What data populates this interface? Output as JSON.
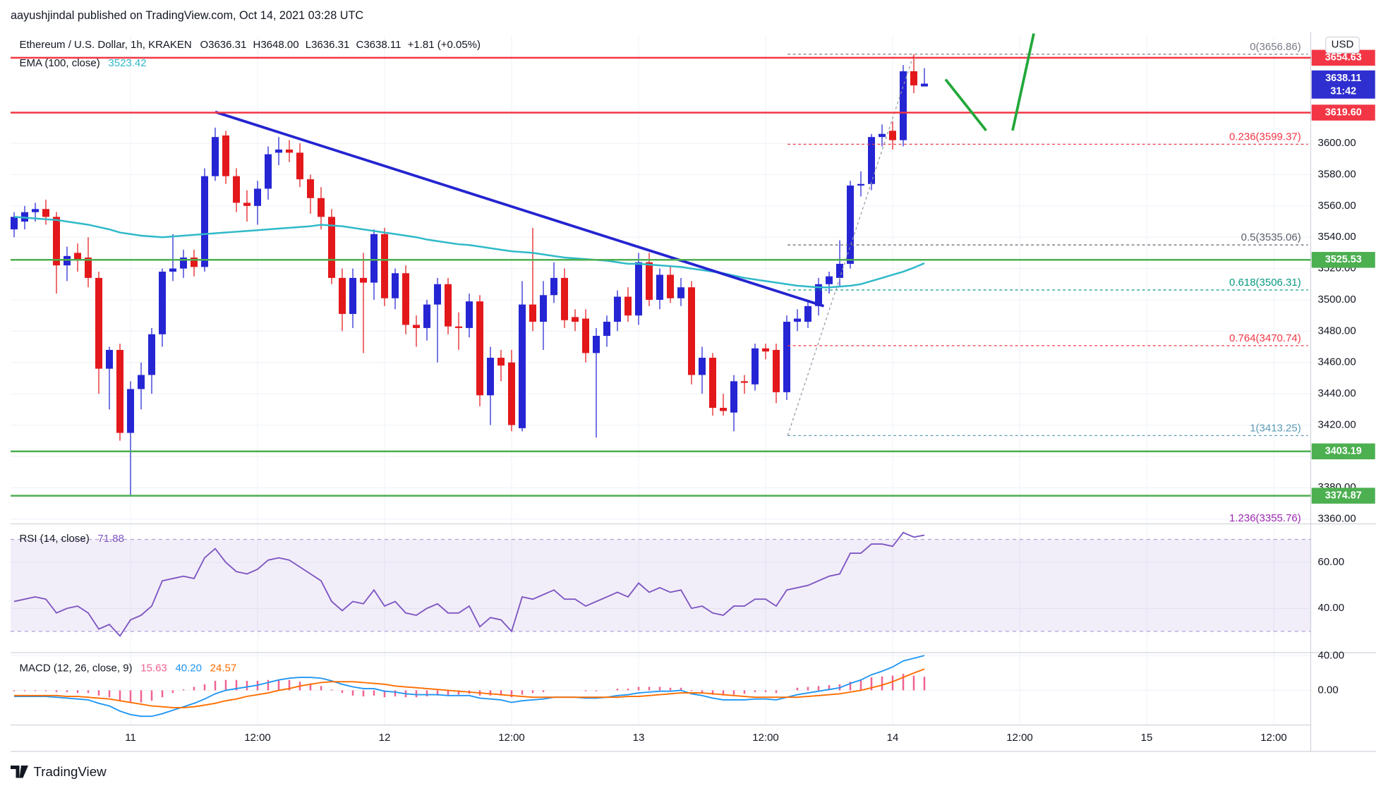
{
  "header": {
    "author_line": "aayushjindal published on TradingView.com, Oct 14, 2021 03:28 UTC",
    "brand": "TradingView"
  },
  "xticks": [
    "11",
    "12:00",
    "12",
    "12:00",
    "13",
    "12:00",
    "14",
    "12:00",
    "15",
    "12:00"
  ],
  "chart_data": [
    {
      "type": "candlestick",
      "currency": "USD",
      "legend": {
        "symbol": "Ethereum / U.S. Dollar, 1h, KRAKEN",
        "open": "O3636.31",
        "high": "H3648.00",
        "low": "L3636.31",
        "close": "C3638.11",
        "change": "+1.81 (+0.05%)"
      },
      "up_color": "#2525d4",
      "down_color": "#e3181b",
      "open": [
        3545,
        3550,
        3556,
        3558,
        3553,
        3522,
        3530,
        3527,
        3514,
        3456,
        3468,
        3415,
        3443,
        3452,
        3478,
        3518,
        3520,
        3527,
        3521,
        3579,
        3605,
        3579,
        3562,
        3560,
        3571,
        3594,
        3596,
        3594,
        3577,
        3565,
        3553,
        3514,
        3491,
        3514,
        3511,
        3542,
        3501,
        3517,
        3484,
        3482,
        3497,
        3510,
        3483,
        3482,
        3499,
        3439,
        3463,
        3460,
        3418,
        3497,
        3486,
        3503,
        3514,
        3489,
        3488,
        3466,
        3477,
        3486,
        3502,
        3490,
        3524,
        3500,
        3516,
        3501,
        3508,
        3452,
        3463,
        3431,
        3428,
        3448,
        3446,
        3469,
        3468,
        3441,
        3486,
        3486,
        3496,
        3510,
        3514,
        3523,
        3573,
        3574,
        3604,
        3608,
        3602,
        3646,
        3636.31
      ],
      "high": [
        3556,
        3560,
        3562,
        3564,
        3556,
        3534,
        3536,
        3540,
        3518,
        3470,
        3472,
        3448,
        3460,
        3482,
        3520,
        3542,
        3532,
        3532,
        3584,
        3610,
        3608,
        3584,
        3570,
        3576,
        3598,
        3604,
        3602,
        3600,
        3580,
        3572,
        3558,
        3520,
        3520,
        3530,
        3545,
        3546,
        3520,
        3522,
        3490,
        3500,
        3514,
        3514,
        3492,
        3504,
        3503,
        3470,
        3468,
        3468,
        3512,
        3546,
        3512,
        3524,
        3520,
        3494,
        3494,
        3482,
        3490,
        3506,
        3508,
        3530,
        3530,
        3520,
        3522,
        3514,
        3512,
        3470,
        3466,
        3440,
        3452,
        3452,
        3472,
        3472,
        3472,
        3490,
        3494,
        3500,
        3514,
        3518,
        3538,
        3576,
        3582,
        3606,
        3612,
        3614,
        3650,
        3656.86,
        3648.0
      ],
      "low": [
        3540,
        3545,
        3550,
        3548,
        3504,
        3512,
        3518,
        3508,
        3440,
        3430,
        3410,
        3375,
        3430,
        3440,
        3470,
        3512,
        3514,
        3515,
        3518,
        3576,
        3574,
        3556,
        3550,
        3548,
        3564,
        3586,
        3588,
        3572,
        3555,
        3545,
        3510,
        3480,
        3482,
        3466,
        3500,
        3496,
        3494,
        3478,
        3470,
        3474,
        3460,
        3478,
        3468,
        3476,
        3432,
        3420,
        3448,
        3416,
        3416,
        3480,
        3468,
        3498,
        3482,
        3480,
        3460,
        3412,
        3470,
        3480,
        3486,
        3484,
        3496,
        3494,
        3498,
        3496,
        3446,
        3440,
        3426,
        3426,
        3416,
        3440,
        3442,
        3462,
        3434,
        3436,
        3480,
        3482,
        3490,
        3504,
        3508,
        3520,
        3566,
        3570,
        3598,
        3596,
        3598,
        3632,
        3636.31
      ],
      "close": [
        3553,
        3556,
        3558,
        3553,
        3522,
        3528,
        3525,
        3514,
        3456,
        3468,
        3415,
        3443,
        3452,
        3478,
        3518,
        3520,
        3527,
        3521,
        3579,
        3604,
        3579,
        3562,
        3560,
        3571,
        3593,
        3596,
        3594,
        3577,
        3565,
        3553,
        3514,
        3491,
        3514,
        3511,
        3542,
        3501,
        3517,
        3484,
        3482,
        3497,
        3510,
        3483,
        3482,
        3499,
        3439,
        3463,
        3458,
        3420,
        3497,
        3486,
        3503,
        3514,
        3487,
        3486,
        3466,
        3477,
        3486,
        3502,
        3490,
        3524,
        3500,
        3516,
        3501,
        3508,
        3452,
        3463,
        3431,
        3429,
        3448,
        3447,
        3469,
        3467,
        3441,
        3486,
        3488,
        3496,
        3510,
        3515,
        3523,
        3573,
        3574,
        3604,
        3606,
        3602,
        3646,
        3637,
        3638.11
      ],
      "countdown": "31:42",
      "last_color": "#2f2fcf",
      "ema": {
        "name": "EMA (100, close)",
        "color": "#2fb9c9",
        "values": [
          3553,
          3552.5,
          3552,
          3551.5,
          3551,
          3550,
          3549,
          3548,
          3546.5,
          3545,
          3543,
          3542,
          3541,
          3540.5,
          3540,
          3540.5,
          3541,
          3541.5,
          3542,
          3542.5,
          3543,
          3543.5,
          3544,
          3544.5,
          3545,
          3545.5,
          3546,
          3546.5,
          3547,
          3548,
          3547.5,
          3547,
          3546,
          3545,
          3544,
          3543,
          3542,
          3541,
          3540,
          3538.5,
          3537.5,
          3536.5,
          3535.5,
          3535,
          3534,
          3533,
          3532,
          3531,
          3530.5,
          3530,
          3529,
          3528,
          3527,
          3526.5,
          3526,
          3525.5,
          3525,
          3524,
          3523,
          3523,
          3522.5,
          3522,
          3521.5,
          3521,
          3520,
          3519,
          3518,
          3517,
          3515.5,
          3514,
          3513,
          3512,
          3511,
          3510,
          3509,
          3508.5,
          3508,
          3508,
          3508.5,
          3509,
          3510,
          3512,
          3514,
          3516,
          3518,
          3520.5,
          3523.42
        ]
      },
      "levels": [
        {
          "value": 3654.63,
          "label": "3654.63",
          "color": "#f23645"
        },
        {
          "value": 3619.6,
          "label": "3619.60",
          "color": "#f23645"
        },
        {
          "value": 3525.53,
          "label": "3525.53",
          "color": "#4caf50"
        },
        {
          "value": 3403.19,
          "label": "3403.19",
          "color": "#4caf50"
        },
        {
          "value": 3374.87,
          "label": "3374.87",
          "color": "#4caf50"
        }
      ],
      "fib": [
        {
          "value": 3656.86,
          "label": "0(3656.86)",
          "color": "#787b86"
        },
        {
          "value": 3599.37,
          "label": "0.236(3599.37)",
          "color": "#f23645"
        },
        {
          "value": 3535.06,
          "label": "0.5(3535.06)",
          "color": "#5d606b"
        },
        {
          "value": 3506.31,
          "label": "0.618(3506.31)",
          "color": "#089981"
        },
        {
          "value": 3470.74,
          "label": "0.764(3470.74)",
          "color": "#f23645"
        },
        {
          "value": 3413.25,
          "label": "1(3413.25)",
          "color": "#5b9cb6"
        },
        {
          "value": 3355.76,
          "label": "1.236(3355.76)",
          "color": "#9c27b0"
        }
      ],
      "trend_line": [
        3620,
        3496
      ],
      "trend_color": "#2424d0",
      "ylim": [
        3358,
        3669
      ],
      "yticks": [
        {
          "value": 3360,
          "label": "3360.00"
        },
        {
          "value": 3380,
          "label": "3380.00"
        },
        {
          "value": 3400,
          "label": "3400.00"
        },
        {
          "value": 3420,
          "label": "3420.00"
        },
        {
          "value": 3440,
          "label": "3440.00"
        },
        {
          "value": 3460,
          "label": "3460.00"
        },
        {
          "value": 3480,
          "label": "3480.00"
        },
        {
          "value": 3500,
          "label": "3500.00"
        },
        {
          "value": 3520,
          "label": "3520.00"
        },
        {
          "value": 3540,
          "label": "3540.00"
        },
        {
          "value": 3560,
          "label": "3560.00"
        },
        {
          "value": 3580,
          "label": "3580.00"
        },
        {
          "value": 3600,
          "label": "3600.00"
        }
      ],
      "grid": true
    },
    {
      "type": "line",
      "band": [
        30,
        70
      ],
      "band_color": "#7e57c2",
      "series": [
        {
          "name": "RSI (14, close)",
          "color": "#7e57c2",
          "values": [
            43,
            44,
            45,
            44,
            38,
            40,
            41,
            38,
            31,
            33,
            28,
            35,
            37,
            41,
            52,
            53,
            54,
            53,
            62,
            66,
            60,
            56,
            55,
            57,
            61,
            62,
            61,
            58,
            55,
            52,
            43,
            39,
            43,
            42,
            48,
            41,
            43,
            38,
            37,
            40,
            42,
            38,
            38,
            41,
            32,
            36,
            35,
            30,
            45,
            44,
            46,
            48,
            44,
            44,
            41,
            43,
            45,
            47,
            45,
            51,
            47,
            49,
            47,
            48,
            40,
            41,
            38,
            37,
            41,
            41,
            44,
            44,
            41,
            48,
            49,
            50,
            52,
            54,
            55,
            64,
            64,
            68,
            68,
            67,
            73,
            71,
            71.88
          ]
        }
      ],
      "ylim": [
        21.5,
        76
      ],
      "yticks": [
        {
          "value": 40,
          "label": "40.00"
        },
        {
          "value": 60,
          "label": "60.00"
        }
      ]
    },
    {
      "type": "macd",
      "title": "MACD (12, 26, close, 9)",
      "legend": [
        "15.63",
        "40.20",
        "24.57"
      ],
      "histogram": {
        "color": "#f06292",
        "values": [
          -1,
          -1,
          -1,
          -1,
          -2,
          -2,
          -3,
          -3,
          -6,
          -8,
          -12,
          -14,
          -14,
          -12,
          -8,
          -3,
          1,
          4,
          7,
          11,
          12,
          12,
          11,
          11,
          12,
          12,
          12,
          10,
          8,
          5,
          1,
          -3,
          -6,
          -7,
          -6,
          -8,
          -7,
          -8,
          -8,
          -7,
          -6,
          -6,
          -5,
          -4,
          -6,
          -6,
          -6,
          -8,
          -5,
          -3,
          -2,
          0,
          0,
          0,
          -1,
          -1,
          0,
          2,
          2,
          4,
          4,
          4,
          3,
          3,
          -1,
          -3,
          -5,
          -6,
          -5,
          -4,
          -2,
          -2,
          -3,
          0,
          3,
          4,
          5,
          6,
          7,
          10,
          12,
          15,
          16,
          17,
          19,
          17,
          15.63
        ]
      },
      "macd": {
        "color": "#2196f3",
        "values": [
          -7,
          -7,
          -7,
          -7,
          -8,
          -9,
          -10,
          -11,
          -15,
          -18,
          -24,
          -28,
          -30,
          -30,
          -27,
          -23,
          -19,
          -15,
          -10,
          -4,
          0,
          2,
          4,
          6,
          9,
          12,
          14,
          15,
          15,
          14,
          11,
          7,
          4,
          2,
          2,
          -1,
          -2,
          -4,
          -5,
          -5,
          -5,
          -6,
          -6,
          -6,
          -9,
          -10,
          -11,
          -14,
          -12,
          -11,
          -10,
          -8,
          -8,
          -8,
          -9,
          -9,
          -8,
          -6,
          -5,
          -3,
          -2,
          -1,
          -1,
          0,
          -4,
          -6,
          -9,
          -11,
          -11,
          -11,
          -10,
          -10,
          -11,
          -8,
          -5,
          -3,
          -1,
          1,
          3,
          8,
          12,
          18,
          22,
          27,
          34,
          37,
          40.2
        ]
      },
      "signal": {
        "color": "#ff6d00",
        "values": [
          -6,
          -6,
          -6,
          -6,
          -6,
          -7,
          -7,
          -8,
          -9,
          -10,
          -12,
          -14,
          -16,
          -18,
          -19,
          -20,
          -20,
          -19,
          -17,
          -15,
          -12,
          -10,
          -7,
          -5,
          -3,
          0,
          2,
          5,
          7,
          9,
          10,
          10,
          10,
          9,
          8,
          7,
          5,
          4,
          3,
          2,
          1,
          0,
          -1,
          -2,
          -3,
          -4,
          -5,
          -6,
          -7,
          -8,
          -8,
          -8,
          -8,
          -8,
          -8,
          -8,
          -8,
          -8,
          -7,
          -7,
          -6,
          -5,
          -4,
          -3,
          -3,
          -3,
          -4,
          -5,
          -6,
          -7,
          -8,
          -8,
          -8,
          -8,
          -8,
          -7,
          -6,
          -5,
          -4,
          -2,
          0,
          3,
          6,
          10,
          15,
          20,
          24.57
        ]
      },
      "ylim": [
        -40,
        41.5
      ],
      "yticks": [
        {
          "value": 0,
          "label": "0.00"
        },
        {
          "value": 40,
          "label": "40.00"
        }
      ]
    }
  ]
}
